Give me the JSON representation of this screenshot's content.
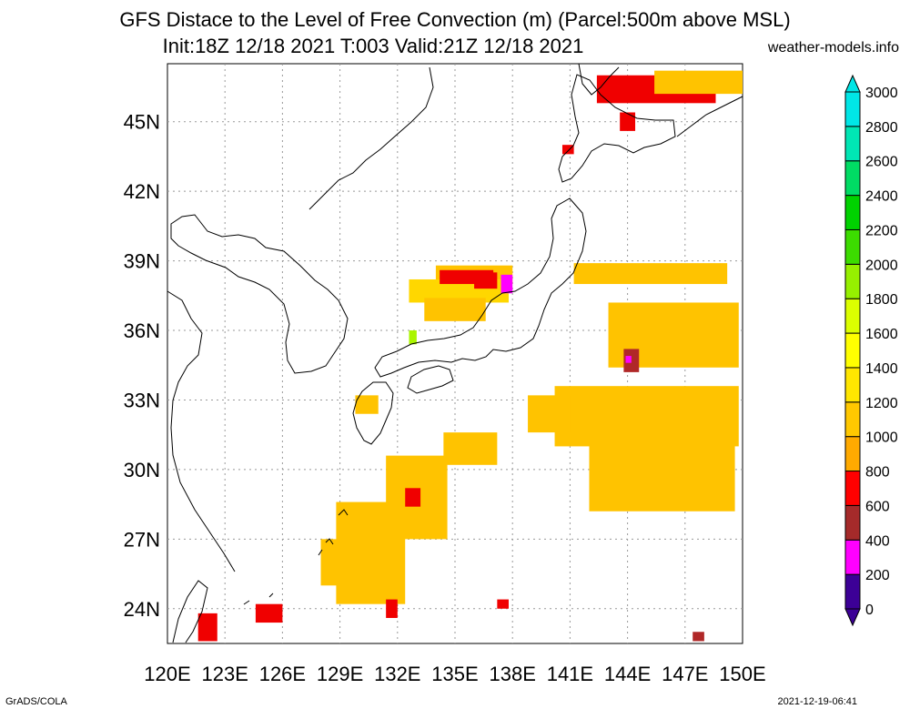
{
  "title": {
    "line1": "GFS Distace to the Level of Free Convection (m) (Parcel:500m above MSL)",
    "line2": "Init:18Z 12/18 2021 T:003 Valid:21Z 12/18 2021",
    "site": "weather-models.info"
  },
  "map": {
    "lon_range": [
      120,
      150
    ],
    "lat_range": [
      22.5,
      47.5
    ],
    "lon_ticks": [
      "120E",
      "123E",
      "126E",
      "129E",
      "132E",
      "135E",
      "138E",
      "141E",
      "144E",
      "147E",
      "150E"
    ],
    "lat_ticks": [
      "24N",
      "27N",
      "30N",
      "33N",
      "36N",
      "39N",
      "42N",
      "45N"
    ],
    "grid": true,
    "field_colors": {
      "orange": "#ffc300",
      "yellow_orange": "#ffd700",
      "red": "#f00000",
      "dark_red": "#b02828",
      "magenta": "#ff00ff",
      "light_green": "#aaf500"
    }
  },
  "legend": {
    "labels": [
      "0",
      "200",
      "400",
      "600",
      "800",
      "1000",
      "1200",
      "1400",
      "1600",
      "1800",
      "2000",
      "2200",
      "2400",
      "2600",
      "2800",
      "3000"
    ],
    "colors": [
      "#3c0096",
      "#ff00ff",
      "#a52a2a",
      "#ff0000",
      "#ffaa00",
      "#ffc800",
      "#ffe600",
      "#ffff00",
      "#dcff00",
      "#96f000",
      "#3cdc00",
      "#00d200",
      "#00dc64",
      "#00e6b4",
      "#00e6e6",
      "#00e6e6"
    ]
  },
  "footer": {
    "left": "GrADS/COLA",
    "right": "2021-12-19-06:41"
  }
}
